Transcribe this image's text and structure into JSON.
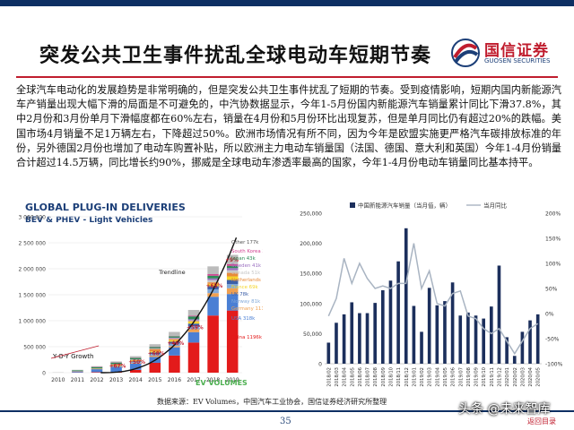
{
  "slide": {
    "title": "突发公共卫生事件扰乱全球电动车短期节奏",
    "paragraph": "全球汽车电动化的发展趋势是非常明确的，但是突发公共卫生事件扰乱了短期的节奏。受到疫情影响，短期内国内新能源汽车产销量出现大幅下滑的局面是不可避免的，中汽协数据显示，今年1-5月份国内新能源汽车销量累计同比下滑37.8%，其中2月份和3月份单月下滑幅度都在60%左右，销量在4月份和5月份环比出现复苏，但是单月同比仍有超过20%的跌幅。美国市场4月销量不足1万辆左右，下降超过50%。欧洲市场情况有所不同，因为今年是欧盟实施更严格汽车碳排放标准的年份，另外德国2月份也增加了电动车购置补贴，所以欧洲主力电动车销量国（法国、德国、意大利和英国）今年1-4月份销量合计超过14.5万辆，同比增长约90%，挪威是全球电动车渗透率最高的国家，今年1-4月份电动车销量同比基本持平。",
    "source": "数据来源：EV Volumes，中国汽车工业协会，国信证券经济研究所整理",
    "page_number": "35",
    "watermark": "头条 @未来智库",
    "back_link": "返回目录",
    "colors": {
      "navy": "#0e2f63",
      "red": "#c01d2e",
      "bar_navy": "#1c2f5c",
      "line_gray": "#a9b4c2"
    }
  },
  "logo": {
    "cn": "国信证券",
    "en": "GUOSEN SECURITIES",
    "icon": "guosen-logo-icon"
  },
  "chart_data": [
    {
      "type": "bar",
      "title": "GLOBAL PLUG-IN DELIVERIES",
      "subtitle": "BEV & PHEV - Light Vehicles",
      "categories": [
        "2010",
        "2011",
        "2012",
        "2013",
        "2014",
        "2015",
        "2016",
        "2017",
        "2018",
        "2019"
      ],
      "stacked": true,
      "series": [
        {
          "name": "China 1196k",
          "color": "#e31b1b",
          "values": [
            0,
            5,
            10,
            15,
            55,
            190,
            330,
            580,
            1100,
            1196
          ]
        },
        {
          "name": "USA 318k",
          "color": "#4a7fd4",
          "values": [
            0,
            18,
            52,
            97,
            118,
            114,
            158,
            200,
            361,
            318
          ]
        },
        {
          "name": "Germany 111k",
          "color": "#f0a050",
          "values": [
            0,
            2,
            3,
            6,
            12,
            23,
            25,
            55,
            70,
            111
          ]
        },
        {
          "name": "Norway 81k",
          "color": "#7fa7d8",
          "values": [
            0,
            2,
            4,
            8,
            20,
            34,
            45,
            62,
            73,
            81
          ]
        },
        {
          "name": "UK 78k",
          "color": "#3c5fa8",
          "values": [
            0,
            1,
            2,
            4,
            15,
            28,
            38,
            47,
            60,
            78
          ]
        },
        {
          "name": "France 69k",
          "color": "#f5d52a",
          "values": [
            0,
            3,
            6,
            9,
            12,
            22,
            29,
            37,
            46,
            69
          ]
        },
        {
          "name": "Netherlands 68k",
          "color": "#e88a3a",
          "values": [
            0,
            1,
            5,
            23,
            14,
            44,
            24,
            11,
            29,
            68
          ]
        },
        {
          "name": "Canada 51k",
          "color": "#c8c8c8",
          "values": [
            0,
            1,
            1,
            2,
            5,
            7,
            11,
            16,
            45,
            51
          ]
        },
        {
          "name": "Sweden 41k",
          "color": "#9a6fc0",
          "values": [
            0,
            0,
            1,
            1,
            4,
            8,
            14,
            20,
            30,
            41
          ]
        },
        {
          "name": "Japan 43k",
          "color": "#2e8b57",
          "values": [
            0,
            12,
            25,
            30,
            31,
            25,
            25,
            55,
            52,
            43
          ]
        },
        {
          "name": "South Korea 34k",
          "color": "#d04090",
          "values": [
            0,
            0,
            1,
            1,
            1,
            3,
            5,
            14,
            30,
            34
          ]
        },
        {
          "name": "Other 177k",
          "color": "#bbbbbb",
          "values": [
            5,
            10,
            15,
            20,
            30,
            50,
            80,
            110,
            150,
            177
          ]
        }
      ],
      "trendline": "Trendline",
      "growth_label": "Y-O-Y Growth",
      "growth": [
        "+67%",
        "+50%",
        "+68%",
        "+46%",
        "+59%",
        "+65%",
        "+9%"
      ],
      "ylim": [
        0,
        3000000
      ],
      "yticks": [
        "0",
        "500 000",
        "1 000 000",
        "1 500 000",
        "2 000 000",
        "2 500 000",
        "3 000 000"
      ],
      "brand": "EV VOLUMES"
    },
    {
      "type": "bar+line",
      "series": [
        {
          "name": "中国新能源汽车销量（当月值，辆）",
          "axis": "left",
          "color": "#1c2f5c"
        },
        {
          "name": "当月同比",
          "axis": "right",
          "color": "#a9b4c2"
        }
      ],
      "categories": [
        "2018/02",
        "2018/03",
        "2018/04",
        "2018/05",
        "2018/06",
        "2018/07",
        "2018/08",
        "2018/09",
        "2018/10",
        "2018/11",
        "2018/12",
        "2019/01",
        "2019/02",
        "2019/03",
        "2019/04",
        "2019/05",
        "2019/06",
        "2019/07",
        "2019/08",
        "2019/09",
        "2019/10",
        "2019/11",
        "2019/12",
        "2020/01",
        "2020/02",
        "2020/03",
        "2020/04",
        "2020/05"
      ],
      "sales": [
        35000,
        68000,
        82000,
        102000,
        84000,
        84000,
        101000,
        122000,
        138000,
        170000,
        225000,
        96000,
        53000,
        126000,
        97000,
        104000,
        135000,
        80000,
        85000,
        80000,
        75000,
        95000,
        163000,
        44000,
        13000,
        53000,
        72000,
        82000
      ],
      "yoy": [
        -5,
        30,
        110,
        60,
        100,
        70,
        50,
        55,
        50,
        60,
        60,
        140,
        50,
        85,
        20,
        15,
        40,
        45,
        -5,
        -10,
        -30,
        -40,
        -30,
        -55,
        -80,
        -55,
        -30,
        -20
      ],
      "ylim_left": [
        0,
        250000
      ],
      "yticks_left": [
        "0",
        "50,000",
        "100,000",
        "150,000",
        "200,000",
        "250,000"
      ],
      "ylim_right": [
        -100,
        200
      ],
      "yticks_right": [
        "-100%",
        "-50%",
        "0%",
        "50%",
        "100%",
        "150%",
        "200%"
      ]
    }
  ]
}
